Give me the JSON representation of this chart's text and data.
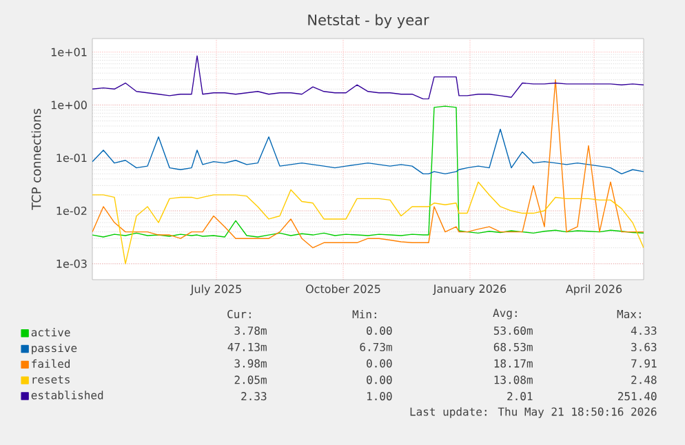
{
  "chart_data": {
    "type": "line",
    "title": "Netstat - by year",
    "ylabel": "TCP connections",
    "log": "y",
    "grid": true,
    "legend": "bottom left",
    "xlim": [
      "2025-04-17",
      "2026-05-22"
    ],
    "xticks": [
      {
        "value": "2025-07-16",
        "label": "July 2025"
      },
      {
        "value": "2025-10-16",
        "label": "October 2025"
      },
      {
        "value": "2026-01-16",
        "label": "January 2026"
      },
      {
        "value": "2026-04-16",
        "label": "April 2026"
      }
    ],
    "ylim": [
      0.0005,
      18
    ],
    "yticks": [
      {
        "value": 0.001,
        "label": "1e-03"
      },
      {
        "value": 0.01,
        "label": "1e-02"
      },
      {
        "value": 0.1,
        "label": "1e-01"
      },
      {
        "value": 1,
        "label": "1e+00"
      },
      {
        "value": 10,
        "label": "1e+01"
      }
    ],
    "x": [
      "2025-04-17",
      "2025-04-25",
      "2025-05-03",
      "2025-05-11",
      "2025-05-19",
      "2025-05-27",
      "2025-06-04",
      "2025-06-12",
      "2025-06-20",
      "2025-06-28",
      "2025-07-02",
      "2025-07-06",
      "2025-07-14",
      "2025-07-22",
      "2025-07-30",
      "2025-08-07",
      "2025-08-15",
      "2025-08-23",
      "2025-08-31",
      "2025-09-08",
      "2025-09-16",
      "2025-09-24",
      "2025-10-02",
      "2025-10-10",
      "2025-10-18",
      "2025-10-26",
      "2025-11-03",
      "2025-11-11",
      "2025-11-19",
      "2025-11-27",
      "2025-12-05",
      "2025-12-13",
      "2025-12-17",
      "2025-12-21",
      "2025-12-29",
      "2026-01-06",
      "2026-01-08",
      "2026-01-14",
      "2026-01-22",
      "2026-01-30",
      "2026-02-07",
      "2026-02-15",
      "2026-02-23",
      "2026-03-03",
      "2026-03-11",
      "2026-03-19",
      "2026-03-27",
      "2026-04-04",
      "2026-04-12",
      "2026-04-20",
      "2026-04-28",
      "2026-05-06",
      "2026-05-14",
      "2026-05-22"
    ],
    "series": [
      {
        "name": "active",
        "color": "#00cc00",
        "values": [
          0.0035,
          0.0032,
          0.0036,
          0.0034,
          0.0038,
          0.0034,
          0.0035,
          0.0033,
          0.0036,
          0.0034,
          0.0035,
          0.0033,
          0.0034,
          0.0032,
          0.0065,
          0.0034,
          0.0032,
          0.0035,
          0.0038,
          0.0034,
          0.0037,
          0.0035,
          0.0038,
          0.0034,
          0.0036,
          0.0035,
          0.0034,
          0.0036,
          0.0035,
          0.0034,
          0.0036,
          0.0035,
          0.0035,
          0.9,
          0.95,
          0.9,
          0.0042,
          0.004,
          0.0038,
          0.0041,
          0.0039,
          0.0042,
          0.004,
          0.0038,
          0.0041,
          0.0043,
          0.004,
          0.0042,
          0.0041,
          0.004,
          0.0043,
          0.0041,
          0.0039,
          0.0038
        ]
      },
      {
        "name": "passive",
        "color": "#0066b3",
        "values": [
          0.085,
          0.14,
          0.08,
          0.09,
          0.065,
          0.07,
          0.25,
          0.065,
          0.06,
          0.065,
          0.14,
          0.075,
          0.085,
          0.08,
          0.09,
          0.075,
          0.08,
          0.25,
          0.07,
          0.075,
          0.08,
          0.075,
          0.07,
          0.065,
          0.07,
          0.075,
          0.08,
          0.075,
          0.07,
          0.075,
          0.07,
          0.05,
          0.05,
          0.055,
          0.05,
          0.055,
          0.06,
          0.065,
          0.07,
          0.065,
          0.35,
          0.065,
          0.13,
          0.08,
          0.085,
          0.08,
          0.075,
          0.08,
          0.075,
          0.07,
          0.065,
          0.05,
          0.06,
          0.055
        ]
      },
      {
        "name": "failed",
        "color": "#ff8000",
        "values": [
          0.004,
          0.012,
          0.006,
          0.004,
          0.004,
          0.004,
          0.0035,
          0.0035,
          0.003,
          0.004,
          0.004,
          0.004,
          0.008,
          0.005,
          0.003,
          0.003,
          0.003,
          0.003,
          0.004,
          0.007,
          0.003,
          0.002,
          0.0025,
          0.0025,
          0.0025,
          0.0025,
          0.003,
          0.003,
          0.0028,
          0.0026,
          0.0025,
          0.0025,
          0.0025,
          0.012,
          0.004,
          0.005,
          0.004,
          0.004,
          0.0045,
          0.005,
          0.004,
          0.004,
          0.004,
          0.03,
          0.005,
          3.0,
          0.004,
          0.005,
          0.17,
          0.004,
          0.035,
          0.004,
          0.004,
          0.004
        ]
      },
      {
        "name": "resets",
        "color": "#ffcc00",
        "values": [
          0.02,
          0.02,
          0.018,
          0.001,
          0.008,
          0.012,
          0.006,
          0.017,
          0.018,
          0.018,
          0.017,
          0.018,
          0.02,
          0.02,
          0.02,
          0.019,
          0.012,
          0.007,
          0.008,
          0.025,
          0.015,
          0.014,
          0.007,
          0.007,
          0.007,
          0.017,
          0.017,
          0.017,
          0.016,
          0.008,
          0.012,
          0.012,
          0.012,
          0.014,
          0.013,
          0.014,
          0.009,
          0.009,
          0.035,
          0.02,
          0.012,
          0.01,
          0.009,
          0.009,
          0.01,
          0.018,
          0.017,
          0.017,
          0.017,
          0.016,
          0.016,
          0.011,
          0.006,
          0.002
        ]
      },
      {
        "name": "established",
        "color": "#330099",
        "values": [
          2.0,
          2.1,
          2.0,
          2.6,
          1.8,
          1.7,
          1.6,
          1.5,
          1.6,
          1.6,
          8.5,
          1.6,
          1.7,
          1.7,
          1.6,
          1.7,
          1.8,
          1.6,
          1.7,
          1.7,
          1.6,
          2.2,
          1.8,
          1.7,
          1.7,
          2.4,
          1.8,
          1.7,
          1.7,
          1.6,
          1.6,
          1.3,
          1.3,
          3.4,
          3.4,
          3.4,
          1.5,
          1.5,
          1.6,
          1.6,
          1.5,
          1.4,
          2.6,
          2.5,
          2.5,
          2.6,
          2.5,
          2.5,
          2.5,
          2.5,
          2.5,
          2.4,
          2.5,
          2.4
        ]
      }
    ],
    "annotations": [
      "Cur:",
      "Min:",
      "Avg:",
      "Max:",
      "3.78m",
      "0.00",
      "53.60m",
      "4.33",
      "47.13m",
      "6.73m",
      "68.53m",
      "3.63",
      "3.98m",
      "0.00",
      "18.17m",
      "7.91",
      "2.05m",
      "0.00",
      "13.08m",
      "2.48",
      "2.33",
      "1.00",
      "2.01",
      "251.40",
      "Last update: Thu May 21 18:50:16 2026"
    ]
  }
}
